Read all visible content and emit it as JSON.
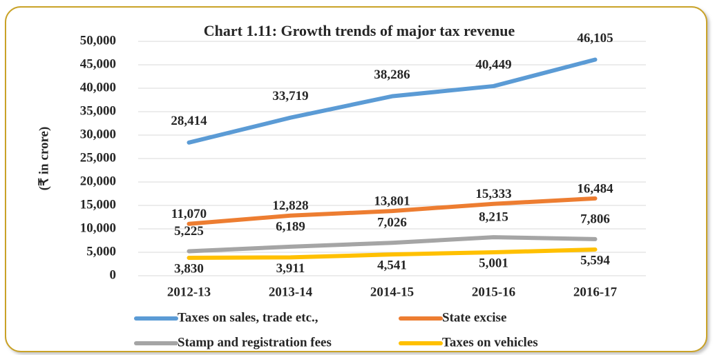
{
  "chart_data": {
    "type": "line",
    "title": "Chart 1.11: Growth trends  of major tax revenue",
    "y_label": "(₹ in crore)",
    "categories": [
      "2012-13",
      "2013-14",
      "2014-15",
      "2015-16",
      "2016-17"
    ],
    "series": [
      {
        "name": "Taxes on sales, trade etc.,",
        "color": "#5b9bd5",
        "values": [
          28414,
          33719,
          38286,
          40449,
          46105
        ],
        "value_labels": [
          "28,414",
          "33,719",
          "38,286",
          "40,449",
          "46,105"
        ]
      },
      {
        "name": "State excise",
        "color": "#ed7d31",
        "values": [
          11070,
          12828,
          13801,
          15333,
          16484
        ],
        "value_labels": [
          "11,070",
          "12,828",
          "13,801",
          "15,333",
          "16,484"
        ]
      },
      {
        "name": "Stamp  and registration fees",
        "color": "#a5a5a5",
        "values": [
          5225,
          6189,
          7026,
          8215,
          7806
        ],
        "value_labels": [
          "5,225",
          "6,189",
          "7,026",
          "8,215",
          "7,806"
        ]
      },
      {
        "name": "Taxes on vehicles",
        "color": "#ffc000",
        "values": [
          3830,
          3911,
          4541,
          5001,
          5594
        ],
        "value_labels": [
          "3,830",
          "3,911",
          "4,541",
          "5,001",
          "5,594"
        ]
      }
    ],
    "ylim": [
      0,
      50000
    ],
    "yticks": [
      0,
      {
        "value": 5000,
        "label": "5,000"
      },
      {
        "value": 10000,
        "label": "10,000"
      },
      {
        "value": 15000,
        "label": "15,000"
      },
      {
        "value": 20000,
        "label": "20,000"
      },
      {
        "value": 25000,
        "label": "25,000"
      },
      {
        "value": 30000,
        "label": "30,000"
      },
      {
        "value": 35000,
        "label": "35,000"
      },
      {
        "value": 40000,
        "label": "40,000"
      },
      {
        "value": 45000,
        "label": "45,000"
      },
      {
        "value": 50000,
        "label": "50,000"
      }
    ],
    "grid": true
  }
}
